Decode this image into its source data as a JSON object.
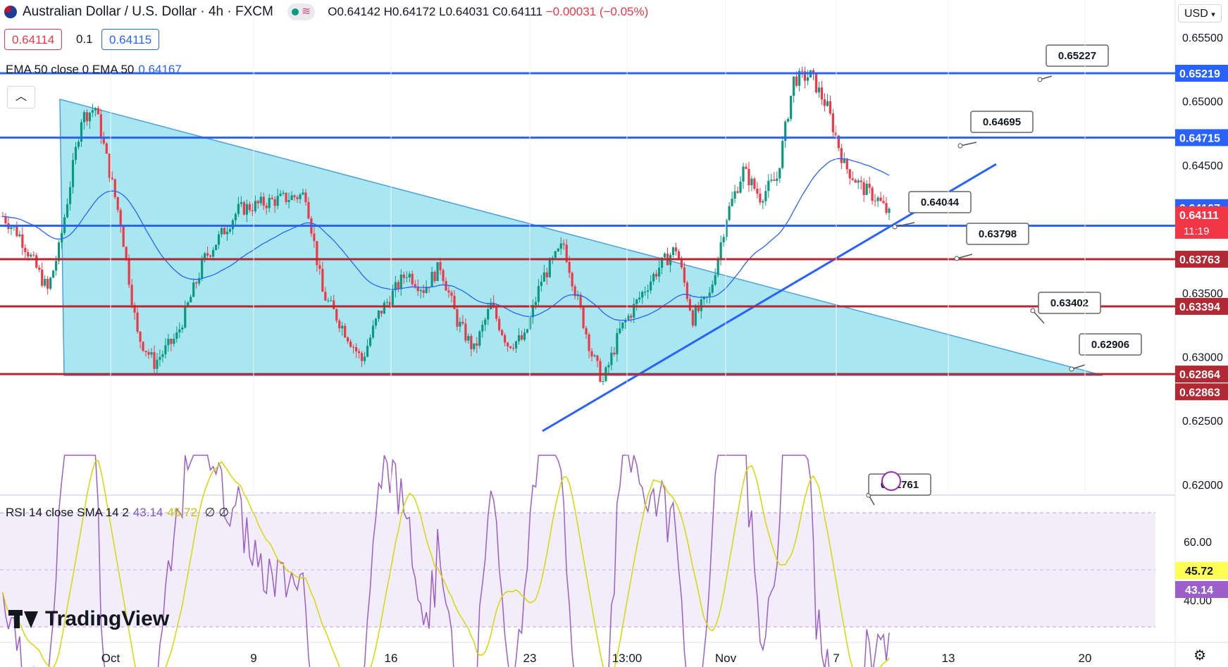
{
  "header": {
    "title": "Australian Dollar / U.S. Dollar · 4h · FXCM",
    "ohlc_open": "O0.64142",
    "ohlc_high": "H0.64172",
    "ohlc_low": "L0.64031",
    "ohlc_close": "C0.64111",
    "ohlc_change": "−0.00031 (−0.05%)",
    "sell_price": "0.64114",
    "spread": "0.1",
    "buy_price": "0.64115",
    "currency": "USD"
  },
  "ema": {
    "label": "EMA 50 close 0 EMA 50",
    "value": "0.64167"
  },
  "rsi": {
    "label": "RSI 14 close SMA 14 2",
    "rsi_value": "43.14",
    "sma_value": "45.72",
    "extra": "∅ ∅"
  },
  "logo": "TradingView",
  "colors": {
    "blue_line": "#2962ff",
    "red_line": "#b22833",
    "triangle_fill": "#9be3ee",
    "up": "#089981",
    "down": "#f23645",
    "rsi": "#9c5ec9",
    "rsi_sma": "#d8d800"
  },
  "chart_data": {
    "type": "candlestick",
    "symbol": "AUDUSD",
    "timeframe": "4h",
    "price_axis": {
      "min": 0.6178,
      "max": 0.6558,
      "ticks": [
        "0.65500",
        "0.65000",
        "0.64500",
        "0.64000",
        "0.63500",
        "0.63000",
        "0.62500",
        "0.62000"
      ]
    },
    "time_axis": {
      "labels": [
        "Oct",
        "9",
        "16",
        "23",
        "13:00",
        "Nov",
        "7",
        "13",
        "20"
      ]
    },
    "horizontal_lines": [
      {
        "price": 0.65219,
        "color": "blue",
        "label": "0.65219"
      },
      {
        "price": 0.64715,
        "color": "blue",
        "label": "0.64715"
      },
      {
        "price": 0.64025,
        "color": "blue",
        "label": "0.64025"
      },
      {
        "price": 0.63763,
        "color": "red",
        "label": "0.63763"
      },
      {
        "price": 0.63394,
        "color": "red",
        "label": "0.63394"
      },
      {
        "price": 0.62864,
        "color": "red",
        "label": "0.62864"
      }
    ],
    "axis_badges": [
      {
        "price": 0.64167,
        "label": "0.64167",
        "color": "blue"
      },
      {
        "price": 0.64111,
        "label": "0.64111",
        "sub": "11:19",
        "color": "red"
      },
      {
        "price": 0.62863,
        "label": "0.62863",
        "color": "red"
      }
    ],
    "callouts": [
      "0.65227",
      "0.64695",
      "0.64044",
      "0.63798",
      "0.63402",
      "0.62906",
      "0.61761"
    ],
    "rsi_axis": {
      "ticks": [
        "60.00",
        "40.00"
      ],
      "badges": [
        "45.72",
        "43.14"
      ]
    },
    "ema_value": 0.64167,
    "last_close": 0.64111
  }
}
